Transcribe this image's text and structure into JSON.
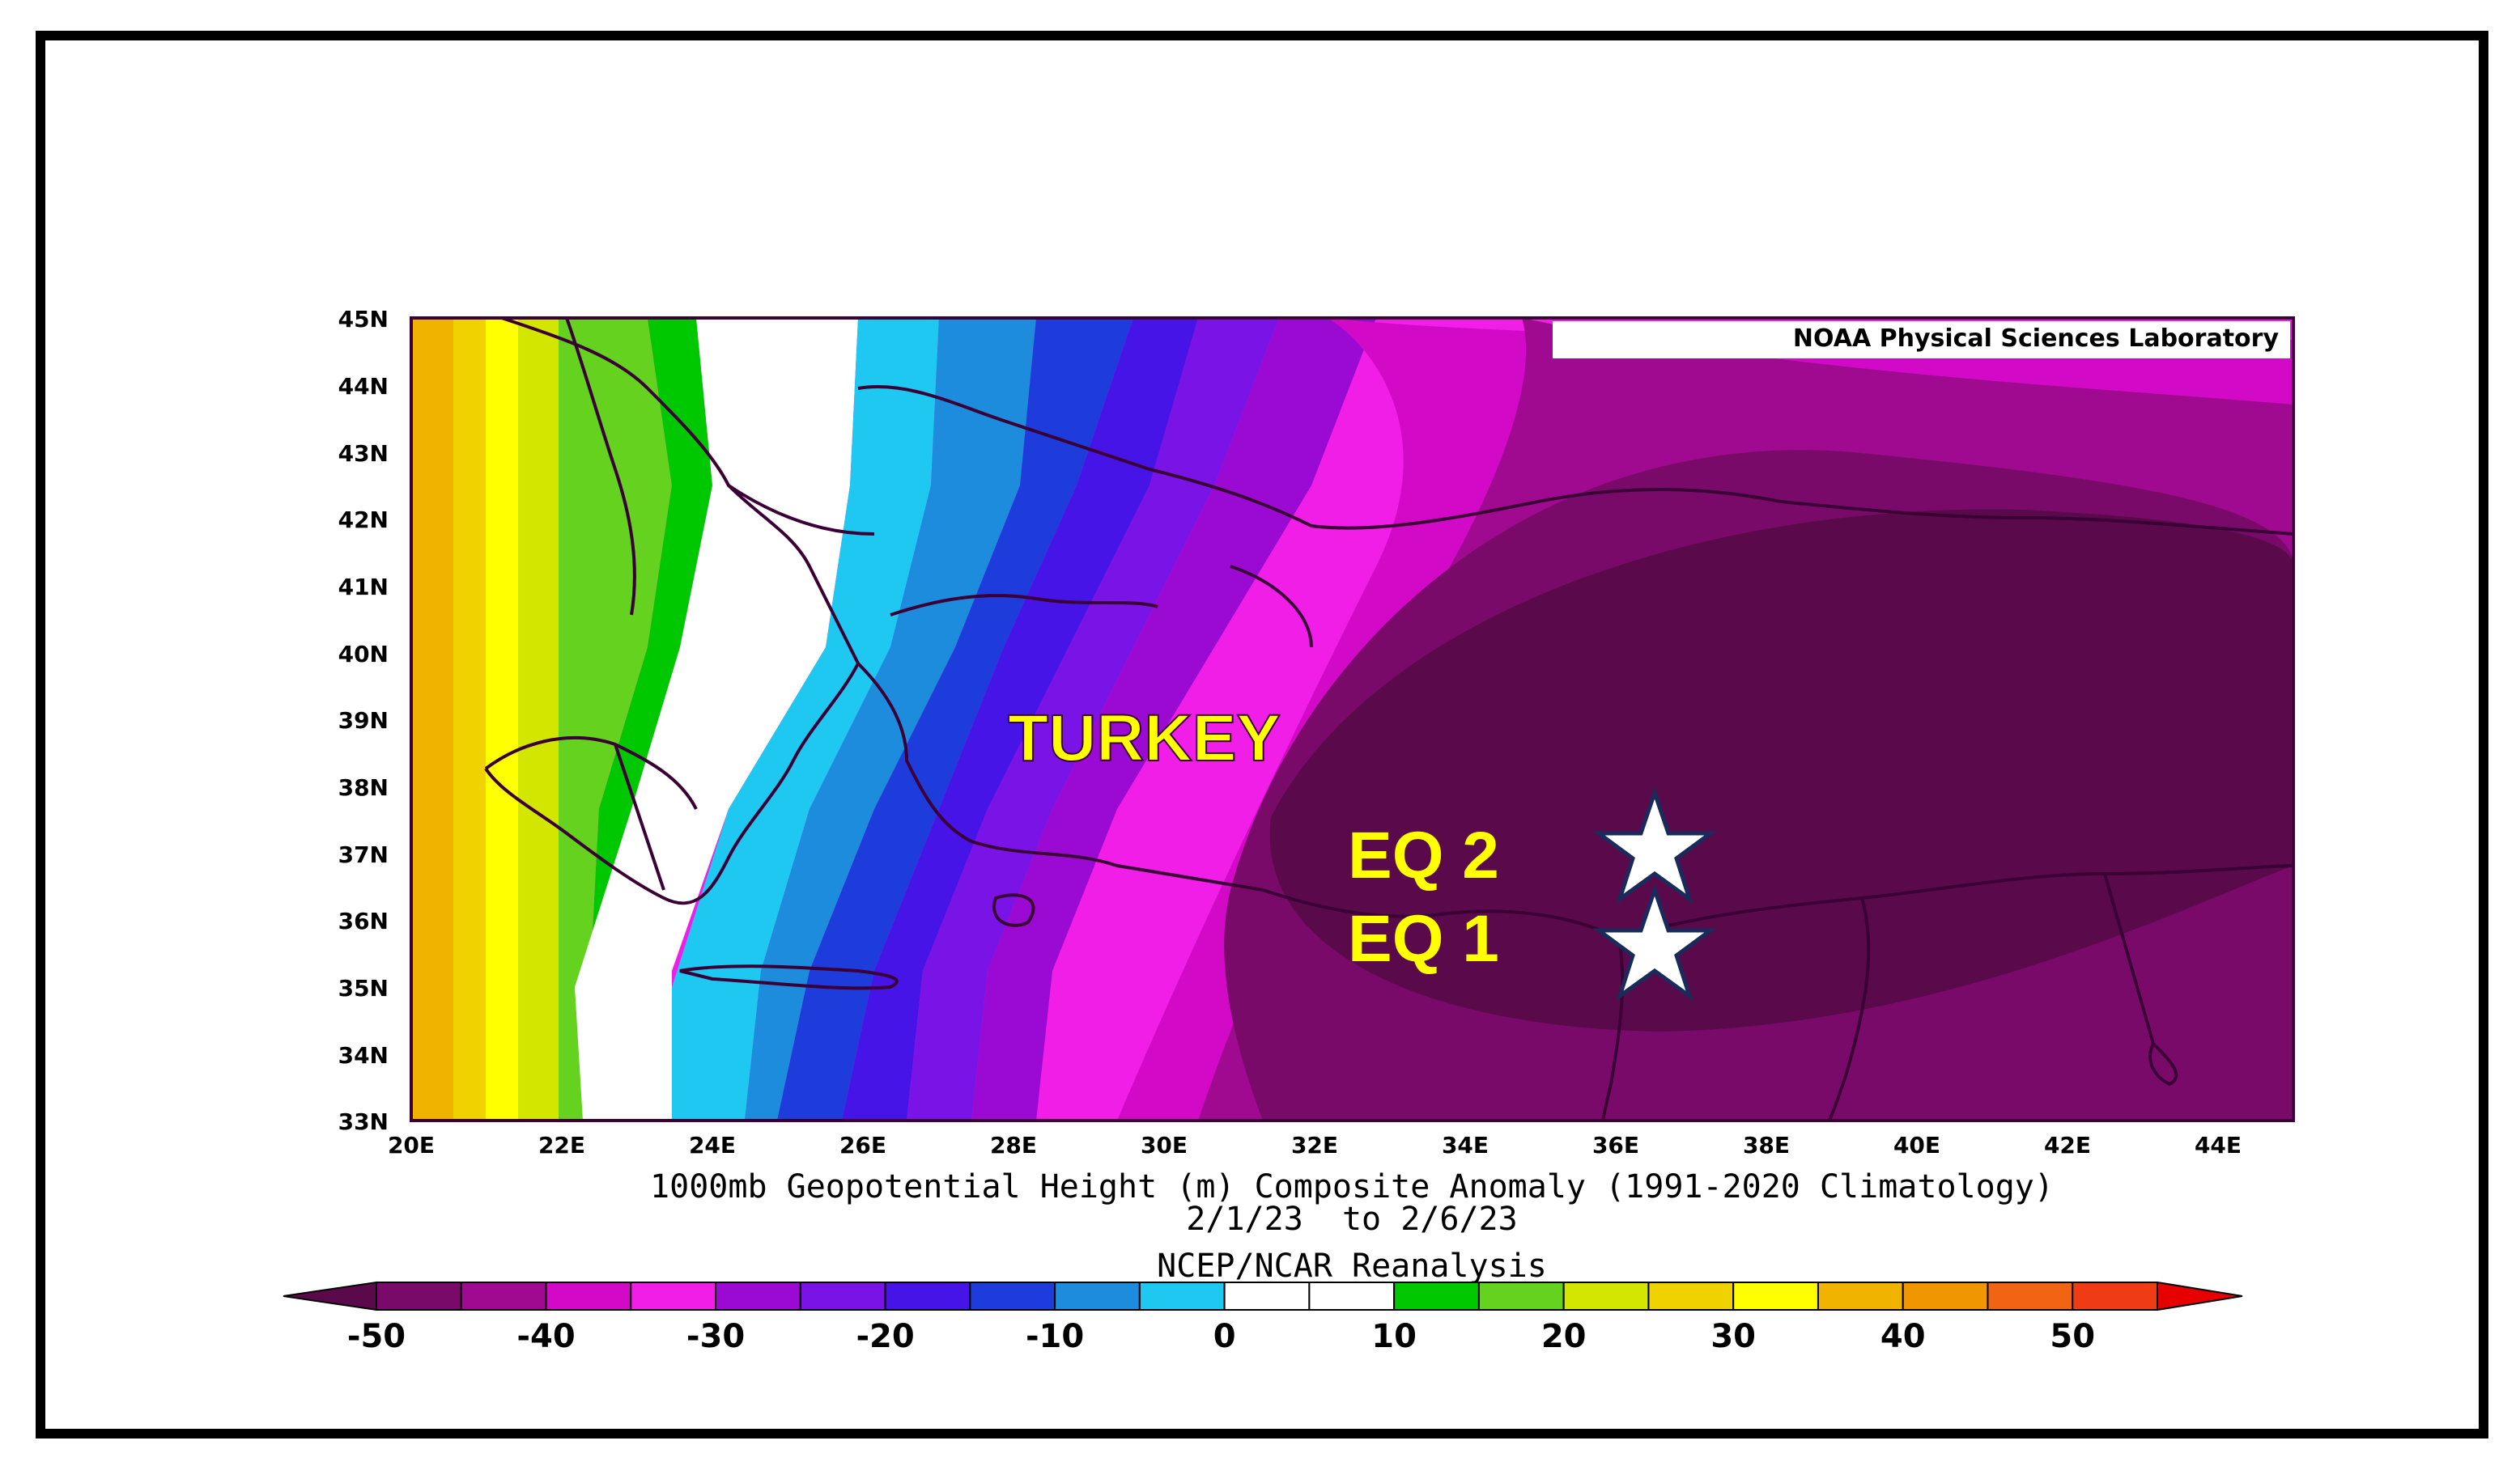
{
  "map": {
    "credit": "NOAA Physical Sciences Laboratory",
    "lat_labels": [
      "45N",
      "44N",
      "43N",
      "42N",
      "41N",
      "40N",
      "39N",
      "38N",
      "37N",
      "36N",
      "35N",
      "34N",
      "33N"
    ],
    "lon_labels": [
      "20E",
      "22E",
      "24E",
      "26E",
      "28E",
      "30E",
      "32E",
      "34E",
      "36E",
      "38E",
      "40E",
      "42E",
      "44E"
    ],
    "country_label": "TURKEY",
    "markers": [
      {
        "label": "EQ 2",
        "icon": "star-icon"
      },
      {
        "label": "EQ 1",
        "icon": "star-icon"
      }
    ],
    "caption": {
      "line1": "1000mb Geopotential Height (m) Composite Anomaly (1991-2020 Climatology)",
      "line2": "2/1/23  to 2/6/23",
      "line3": "NCEP/NCAR Reanalysis"
    }
  },
  "colorbar": {
    "tick_labels": [
      "-50",
      "-40",
      "-30",
      "-20",
      "-10",
      "0",
      "10",
      "20",
      "30",
      "40",
      "50"
    ],
    "colors": [
      "#5a0a4a",
      "#7a0a6a",
      "#a00a90",
      "#d20ac8",
      "#f01ee6",
      "#9a0ad2",
      "#7a14e6",
      "#4614e6",
      "#1e3cdc",
      "#1e8cdc",
      "#1ec8f0",
      "#ffffff",
      "#ffffff",
      "#00c800",
      "#64d21e",
      "#d2e600",
      "#f0d200",
      "#ffff00",
      "#f0b400",
      "#f09600",
      "#f06414",
      "#f03c14",
      "#e60000"
    ]
  },
  "colors": {
    "country_label": "#ffff00",
    "marker_text": "#ffff00",
    "border": "#3a0036"
  }
}
